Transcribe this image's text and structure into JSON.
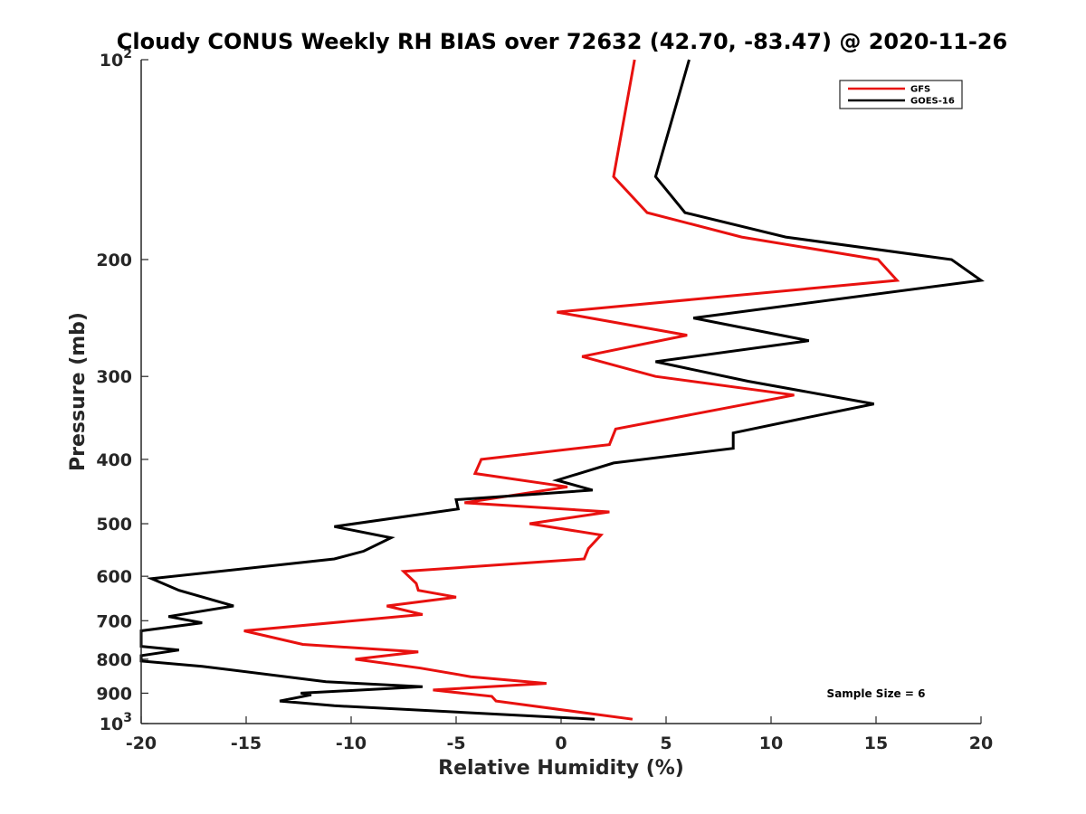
{
  "chart_data": {
    "type": "line",
    "title": "Cloudy CONUS Weekly RH BIAS over 72632 (42.70, -83.47) @ 2020-11-26",
    "xlabel": "Relative Humidity (%)",
    "ylabel": "Pressure (mb)",
    "xlim": [
      -20,
      20
    ],
    "ylim": [
      100,
      1000
    ],
    "y_scale": "log",
    "y_reversed": true,
    "xticks": [
      -20,
      -15,
      -10,
      -5,
      0,
      5,
      10,
      15,
      20
    ],
    "yticks": [
      {
        "value": 100,
        "base": "10",
        "exp": "2"
      },
      {
        "value": 200,
        "label": "200"
      },
      {
        "value": 300,
        "label": "300"
      },
      {
        "value": 400,
        "label": "400"
      },
      {
        "value": 500,
        "label": "500"
      },
      {
        "value": 600,
        "label": "600"
      },
      {
        "value": 700,
        "label": "700"
      },
      {
        "value": 800,
        "label": "800"
      },
      {
        "value": 900,
        "label": "900"
      },
      {
        "value": 1000,
        "base": "10",
        "exp": "3"
      }
    ],
    "legend_position": "top-right",
    "series": [
      {
        "name": "GFS",
        "color": "#e8110f",
        "points": [
          {
            "x": 3.5,
            "p": 100
          },
          {
            "x": 2.5,
            "p": 150
          },
          {
            "x": 4.1,
            "p": 170
          },
          {
            "x": 8.6,
            "p": 185
          },
          {
            "x": 15.1,
            "p": 200
          },
          {
            "x": 16.0,
            "p": 215
          },
          {
            "x": -0.2,
            "p": 240
          },
          {
            "x": 6.0,
            "p": 260
          },
          {
            "x": 1.0,
            "p": 280
          },
          {
            "x": 4.5,
            "p": 300
          },
          {
            "x": 11.1,
            "p": 320
          },
          {
            "x": 2.6,
            "p": 360
          },
          {
            "x": 2.3,
            "p": 380
          },
          {
            "x": -3.8,
            "p": 400
          },
          {
            "x": -4.1,
            "p": 420
          },
          {
            "x": 0.3,
            "p": 440
          },
          {
            "x": -4.6,
            "p": 465
          },
          {
            "x": 2.3,
            "p": 480
          },
          {
            "x": -1.5,
            "p": 500
          },
          {
            "x": 1.9,
            "p": 520
          },
          {
            "x": 1.3,
            "p": 545
          },
          {
            "x": 1.1,
            "p": 565
          },
          {
            "x": -7.5,
            "p": 590
          },
          {
            "x": -6.9,
            "p": 615
          },
          {
            "x": -6.8,
            "p": 630
          },
          {
            "x": -5.0,
            "p": 645
          },
          {
            "x": -8.3,
            "p": 665
          },
          {
            "x": -6.6,
            "p": 685
          },
          {
            "x": -15.1,
            "p": 725
          },
          {
            "x": -12.3,
            "p": 760
          },
          {
            "x": -6.8,
            "p": 780
          },
          {
            "x": -9.8,
            "p": 800
          },
          {
            "x": -6.7,
            "p": 825
          },
          {
            "x": -4.3,
            "p": 850
          },
          {
            "x": -0.7,
            "p": 870
          },
          {
            "x": -6.1,
            "p": 890
          },
          {
            "x": -3.3,
            "p": 910
          },
          {
            "x": -3.1,
            "p": 925
          },
          {
            "x": 3.4,
            "p": 985
          }
        ]
      },
      {
        "name": "GOES-16",
        "color": "#000000",
        "points": [
          {
            "x": 6.1,
            "p": 100
          },
          {
            "x": 4.5,
            "p": 150
          },
          {
            "x": 5.9,
            "p": 170
          },
          {
            "x": 10.7,
            "p": 185
          },
          {
            "x": 18.6,
            "p": 200
          },
          {
            "x": 20.0,
            "p": 215
          },
          {
            "x": 6.3,
            "p": 245
          },
          {
            "x": 11.8,
            "p": 265
          },
          {
            "x": 4.5,
            "p": 285
          },
          {
            "x": 8.9,
            "p": 305
          },
          {
            "x": 14.9,
            "p": 330
          },
          {
            "x": 11.9,
            "p": 345
          },
          {
            "x": 8.2,
            "p": 365
          },
          {
            "x": 8.2,
            "p": 385
          },
          {
            "x": 2.5,
            "p": 405
          },
          {
            "x": -0.2,
            "p": 430
          },
          {
            "x": 1.5,
            "p": 445
          },
          {
            "x": -5.0,
            "p": 460
          },
          {
            "x": -4.9,
            "p": 475
          },
          {
            "x": -10.8,
            "p": 505
          },
          {
            "x": -8.1,
            "p": 525
          },
          {
            "x": -9.4,
            "p": 550
          },
          {
            "x": -10.8,
            "p": 565
          },
          {
            "x": -19.5,
            "p": 605
          },
          {
            "x": -18.2,
            "p": 630
          },
          {
            "x": -15.6,
            "p": 665
          },
          {
            "x": -18.7,
            "p": 690
          },
          {
            "x": -17.1,
            "p": 705
          },
          {
            "x": -20.0,
            "p": 725
          },
          {
            "x": -20.0,
            "p": 765
          },
          {
            "x": -18.2,
            "p": 775
          },
          {
            "x": -20.0,
            "p": 790
          },
          {
            "x": -20.0,
            "p": 805
          },
          {
            "x": -17.1,
            "p": 820
          },
          {
            "x": -11.2,
            "p": 865
          },
          {
            "x": -6.6,
            "p": 880
          },
          {
            "x": -12.4,
            "p": 900
          },
          {
            "x": -11.9,
            "p": 905
          },
          {
            "x": -13.4,
            "p": 925
          },
          {
            "x": -10.8,
            "p": 940
          },
          {
            "x": 1.6,
            "p": 985
          }
        ]
      }
    ],
    "annotation": "Sample Size = 6"
  }
}
